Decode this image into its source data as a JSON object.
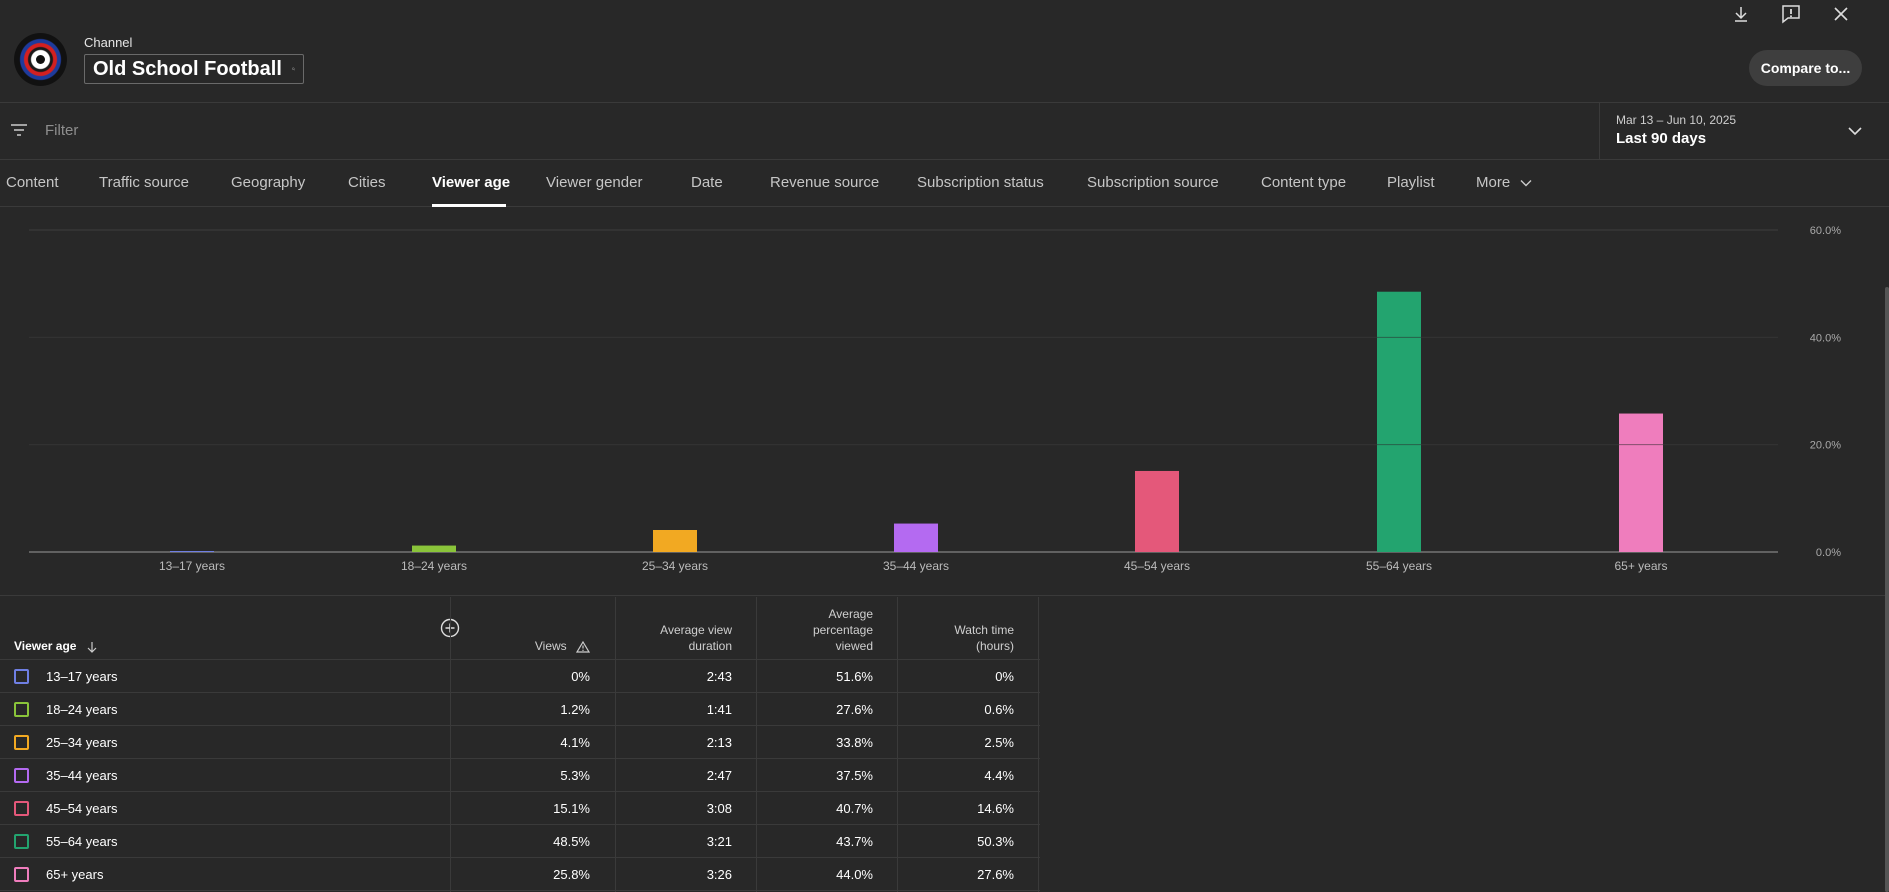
{
  "header": {
    "channel_label": "Channel",
    "channel_name": "Old School Football",
    "compare_label": "Compare to..."
  },
  "filter": {
    "placeholder": "Filter",
    "date_range": "Mar 13 – Jun 10, 2025",
    "date_label": "Last 90 days"
  },
  "tabs": [
    {
      "label": "Content"
    },
    {
      "label": "Traffic source"
    },
    {
      "label": "Geography"
    },
    {
      "label": "Cities"
    },
    {
      "label": "Viewer age",
      "active": true
    },
    {
      "label": "Viewer gender"
    },
    {
      "label": "Date"
    },
    {
      "label": "Revenue source"
    },
    {
      "label": "Subscription status"
    },
    {
      "label": "Subscription source"
    },
    {
      "label": "Content type"
    },
    {
      "label": "Playlist"
    },
    {
      "label": "More"
    }
  ],
  "chart_data": {
    "type": "bar",
    "categories": [
      "13–17 years",
      "18–24 years",
      "25–34 years",
      "35–44 years",
      "45–54 years",
      "55–64 years",
      "65+ years"
    ],
    "values": [
      0,
      1.2,
      4.1,
      5.3,
      15.1,
      48.5,
      25.8
    ],
    "colors": [
      "#6f7fe3",
      "#8ac43a",
      "#f2a922",
      "#b46af1",
      "#e4587a",
      "#23a46f",
      "#ef7dbd"
    ],
    "ylim": [
      0,
      60
    ],
    "yticks": [
      "0.0%",
      "20.0%",
      "40.0%",
      "60.0%"
    ],
    "grid": true
  },
  "table": {
    "headers": {
      "dimension": "Viewer age",
      "views": "Views",
      "avg_view_duration_1": "Average view",
      "avg_view_duration_2": "duration",
      "avg_pct_1": "Average",
      "avg_pct_2": "percentage",
      "avg_pct_3": "viewed",
      "watch_time_1": "Watch time",
      "watch_time_2": "(hours)"
    },
    "rows": [
      {
        "label": "13–17 years",
        "views": "0%",
        "avd": "2:43",
        "apv": "51.6%",
        "wt": "0%"
      },
      {
        "label": "18–24 years",
        "views": "1.2%",
        "avd": "1:41",
        "apv": "27.6%",
        "wt": "0.6%"
      },
      {
        "label": "25–34 years",
        "views": "4.1%",
        "avd": "2:13",
        "apv": "33.8%",
        "wt": "2.5%"
      },
      {
        "label": "35–44 years",
        "views": "5.3%",
        "avd": "2:47",
        "apv": "37.5%",
        "wt": "4.4%"
      },
      {
        "label": "45–54 years",
        "views": "15.1%",
        "avd": "3:08",
        "apv": "40.7%",
        "wt": "14.6%"
      },
      {
        "label": "55–64 years",
        "views": "48.5%",
        "avd": "3:21",
        "apv": "43.7%",
        "wt": "50.3%"
      },
      {
        "label": "65+ years",
        "views": "25.8%",
        "avd": "3:26",
        "apv": "44.0%",
        "wt": "27.6%"
      }
    ]
  }
}
